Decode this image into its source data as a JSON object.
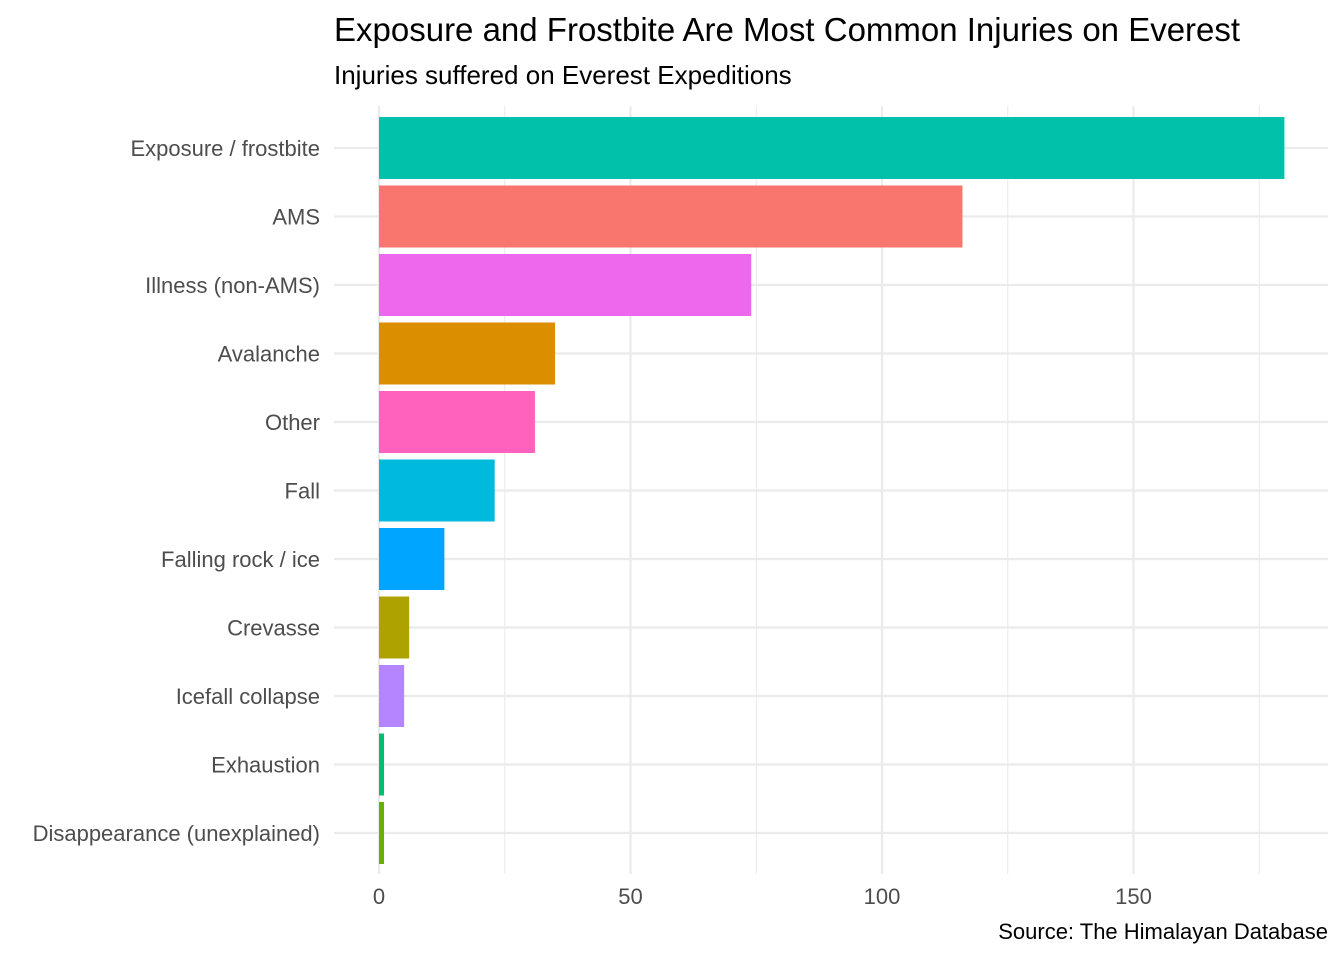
{
  "chart_data": {
    "type": "bar",
    "orientation": "horizontal",
    "title": "Exposure and Frostbite Are Most Common Injuries on Everest",
    "subtitle": "Injuries suffered on Everest Expeditions",
    "caption": "Source: The Himalayan Database",
    "xlabel": "",
    "ylabel": "",
    "xlim": [
      0,
      180
    ],
    "x_ticks": [
      0,
      50,
      100,
      150
    ],
    "x_minor_ticks": [
      25,
      75,
      125,
      175
    ],
    "grid": true,
    "legend": "none",
    "categories": [
      "Exposure / frostbite",
      "AMS",
      "Illness (non-AMS)",
      "Avalanche",
      "Other",
      "Fall",
      "Falling rock / ice",
      "Crevasse",
      "Icefall collapse",
      "Exhaustion",
      "Disappearance (unexplained)"
    ],
    "values": [
      180,
      116,
      74,
      35,
      31,
      23,
      13,
      6,
      5,
      1,
      1
    ],
    "colors": [
      "#00C1AA",
      "#F8766D",
      "#ED68ED",
      "#DB8E00",
      "#FF62BC",
      "#00BADE",
      "#00A5FF",
      "#AEA200",
      "#B385FF",
      "#00BE70",
      "#64B200"
    ]
  }
}
